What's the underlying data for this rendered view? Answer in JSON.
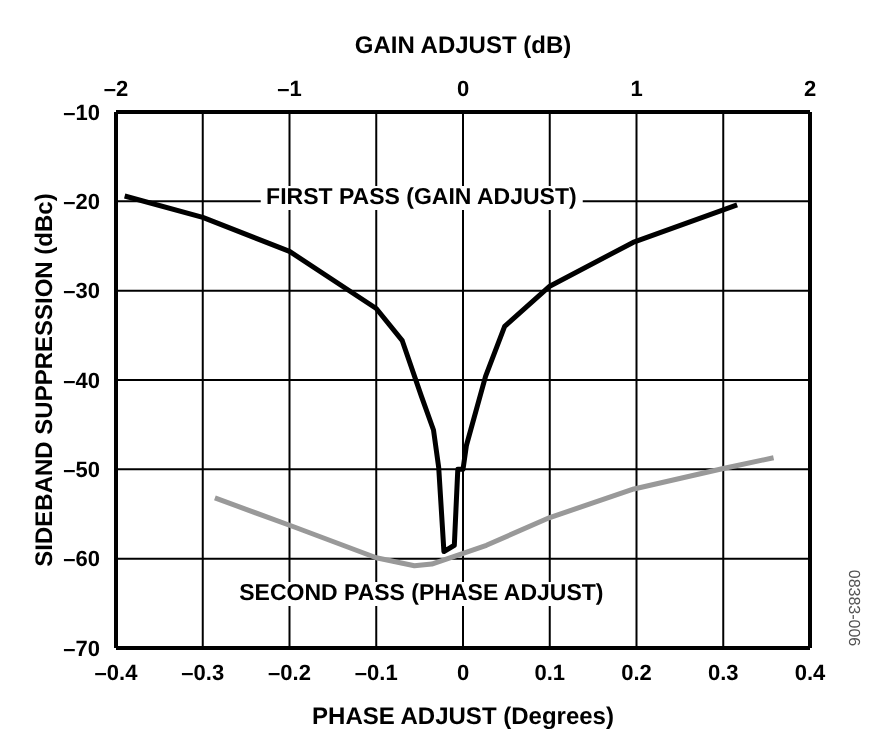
{
  "chart_data": {
    "type": "line",
    "xlabel": "PHASE ADJUST (Degrees)",
    "x2label": "GAIN ADJUST (dB)",
    "ylabel": "SIDEBAND SUPPRESSION (dBc)",
    "annotations": [
      "08383-006"
    ],
    "xlim": [
      -0.4,
      0.4
    ],
    "xticks": [
      {
        "value": -0.4,
        "label": "–0.4"
      },
      {
        "value": -0.3,
        "label": "–0.3"
      },
      {
        "value": -0.2,
        "label": "–0.2"
      },
      {
        "value": -0.1,
        "label": "–0.1"
      },
      0,
      0.1,
      0.2,
      0.3,
      0.4
    ],
    "x2lim": [
      -2,
      2
    ],
    "x2ticks": [
      {
        "value": -2,
        "label": "–2"
      },
      {
        "value": -1,
        "label": "–1"
      },
      0,
      1,
      2
    ],
    "ylim": [
      -70,
      -10
    ],
    "yticks": [
      {
        "value": -70,
        "label": "–70"
      },
      {
        "value": -60,
        "label": "–60"
      },
      {
        "value": -50,
        "label": "–50"
      },
      {
        "value": -40,
        "label": "–40"
      },
      {
        "value": -30,
        "label": "–30"
      },
      {
        "value": -20,
        "label": "–20"
      },
      {
        "value": -10,
        "label": "–10"
      }
    ],
    "grid": true,
    "marker": "none",
    "line_style": "solid",
    "series": [
      {
        "name": "FIRST PASS (GAIN ADJUST)",
        "color": "#000000",
        "axis": "x2",
        "x": [
          -1.95,
          -1.5,
          -1,
          -0.5,
          -0.35,
          -0.24,
          -0.17,
          -0.14,
          -0.11,
          -0.05,
          -0.03,
          0,
          0.02,
          0.13,
          0.24,
          0.5,
          0.98,
          1.58
        ],
        "values": [
          -19.4,
          -21.8,
          -25.6,
          -32,
          -35.6,
          -41.8,
          -45.6,
          -49.8,
          -59.2,
          -58.5,
          -50,
          -50,
          -47.3,
          -39.6,
          -34,
          -29.5,
          -24.6,
          -20.4
        ]
      },
      {
        "name": "SECOND PASS (PHASE ADJUST)",
        "color": "#999999",
        "x": [
          -0.286,
          -0.196,
          -0.1,
          -0.056,
          -0.036,
          0.027,
          0.1,
          0.197,
          0.3,
          0.358
        ],
        "values": [
          -53.2,
          -56.4,
          -59.9,
          -60.8,
          -60.6,
          -58.5,
          -55.4,
          -52.2,
          -49.9,
          -48.7
        ]
      }
    ]
  }
}
